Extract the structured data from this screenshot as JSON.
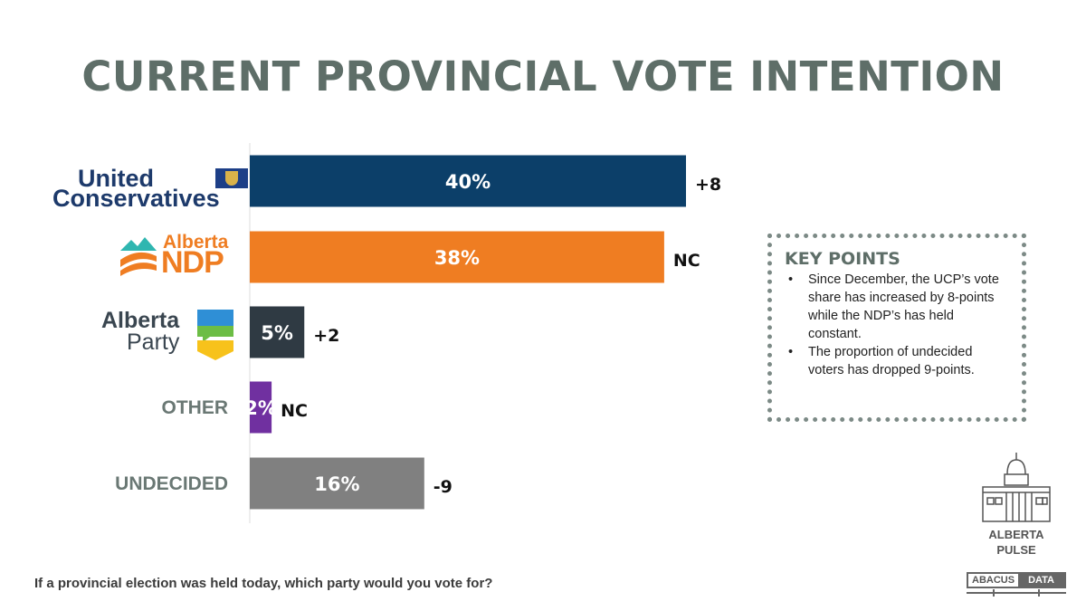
{
  "title": "CURRENT PROVINCIAL VOTE INTENTION",
  "chart_data": {
    "type": "bar",
    "orientation": "horizontal",
    "categories": [
      "United Conservatives",
      "Alberta NDP",
      "Alberta Party",
      "OTHER",
      "UNDECIDED"
    ],
    "values": [
      40,
      38,
      5,
      2,
      16
    ],
    "value_labels": [
      "40%",
      "38%",
      "5%",
      "2%",
      "16%"
    ],
    "change_labels": [
      "+8",
      "NC",
      "+2",
      "NC",
      "-9"
    ],
    "colors": [
      "#0c3f69",
      "#ef7d22",
      "#2f3a43",
      "#7030a0",
      "#808080"
    ],
    "xlim": [
      0,
      50
    ],
    "grid": false,
    "category_display": [
      "logo",
      "logo",
      "logo",
      "text",
      "text"
    ]
  },
  "logos": {
    "ucp": {
      "line1": "United",
      "line2": "Conservatives"
    },
    "ndp": {
      "line1": "Alberta",
      "line2": "NDP"
    },
    "ap": {
      "line1": "Alberta",
      "line2": "Party"
    }
  },
  "key_points": {
    "title": "KEY POINTS",
    "items": [
      "Since December, the UCP’s vote share has increased by 8-points while the NDP’s has held constant.",
      "The proportion of undecided voters has dropped 9-points."
    ]
  },
  "footnote": "If a provincial election was held today, which party would you vote for?",
  "branding": {
    "pulse_line1": "ALBERTA",
    "pulse_line2": "PULSE",
    "abacus_word1": "ABACUS",
    "abacus_word2": "DATA"
  }
}
